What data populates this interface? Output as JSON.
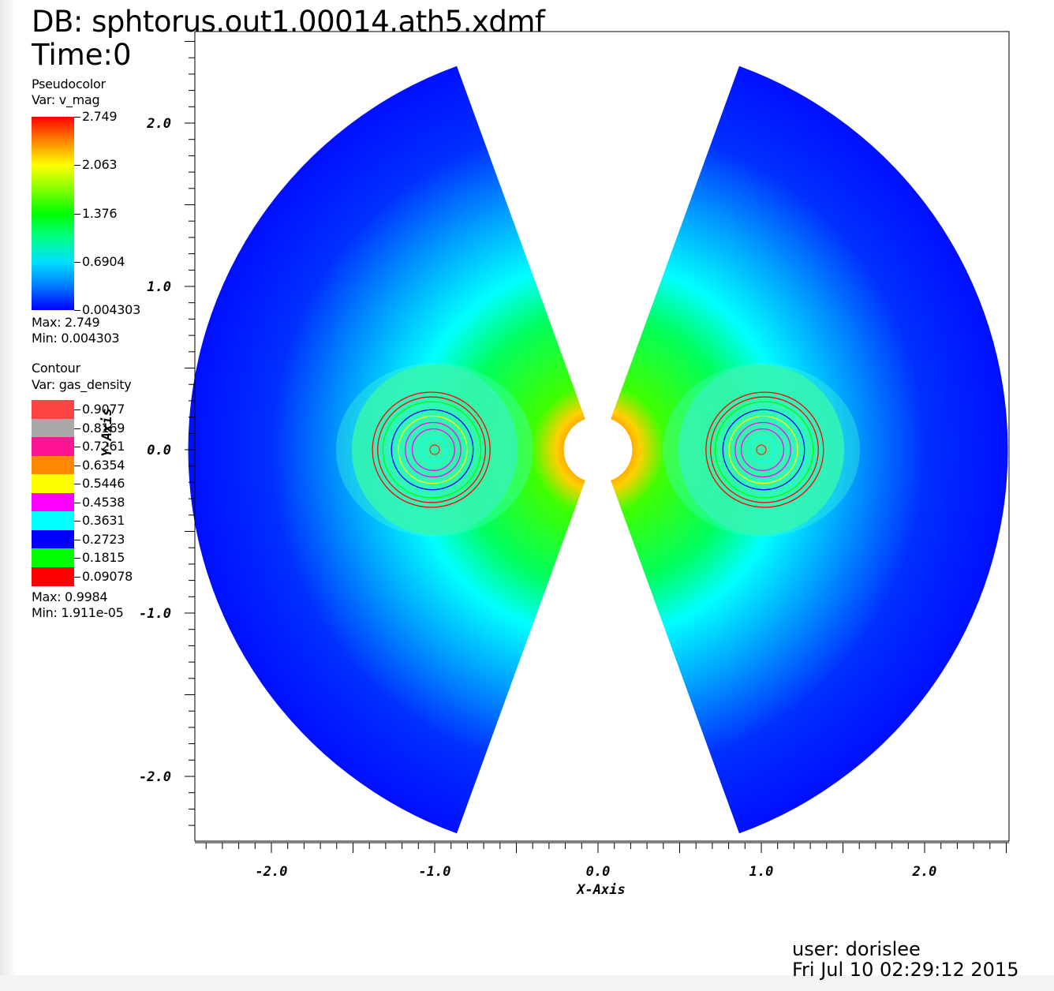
{
  "header": {
    "db": "DB: sphtorus.out1.00014.ath5.xdmf",
    "time": "Time:0"
  },
  "pseudocolor": {
    "title": "Pseudocolor",
    "var": "Var: v_mag",
    "ticks": [
      "2.749",
      "2.063",
      "1.376",
      "0.6904",
      "0.004303"
    ],
    "max_label": "Max:  2.749",
    "min_label": "Min:  0.004303"
  },
  "contour": {
    "title": "Contour",
    "var": "Var: gas_density",
    "levels": [
      {
        "label": "0.9077",
        "color": "#ff4444"
      },
      {
        "label": "0.8169",
        "color": "#a8a8a8"
      },
      {
        "label": "0.7261",
        "color": "#ff1493"
      },
      {
        "label": "0.6354",
        "color": "#ff8800"
      },
      {
        "label": "0.5446",
        "color": "#ffff00"
      },
      {
        "label": "0.4538",
        "color": "#ff00ff"
      },
      {
        "label": "0.3631",
        "color": "#00ffff"
      },
      {
        "label": "0.2723",
        "color": "#0000ff"
      },
      {
        "label": "0.1815",
        "color": "#00ff00"
      },
      {
        "label": "0.09078",
        "color": "#ff0000"
      }
    ],
    "max_label": "Max:  0.9984",
    "min_label": "Min:  1.911e-05"
  },
  "footer": {
    "user": "user:  dorislee",
    "date": "Fri Jul  10 02:29:12 2015"
  },
  "chart_data": {
    "type": "heatmap",
    "title": "",
    "xlabel": "X-Axis",
    "ylabel": "Y-Axis",
    "xlim": [
      -2.5,
      2.5
    ],
    "ylim": [
      -2.4,
      2.6
    ],
    "x_ticks": [
      "-2.0",
      "-1.0",
      "0.0",
      "1.0",
      "2.0"
    ],
    "y_ticks": [
      "2.0",
      "1.0",
      "0.0",
      "-1.0",
      "-2.0"
    ],
    "domain": {
      "r_inner": 0.2,
      "r_outer": 2.5,
      "wedge_half_angle_deg": 70
    },
    "torus_centers": [
      [
        -1.0,
        0.0
      ],
      [
        1.0,
        0.0
      ]
    ],
    "contour_radii": [
      0.08,
      0.13,
      0.17,
      0.21,
      0.25,
      0.3,
      0.33,
      0.36
    ]
  }
}
